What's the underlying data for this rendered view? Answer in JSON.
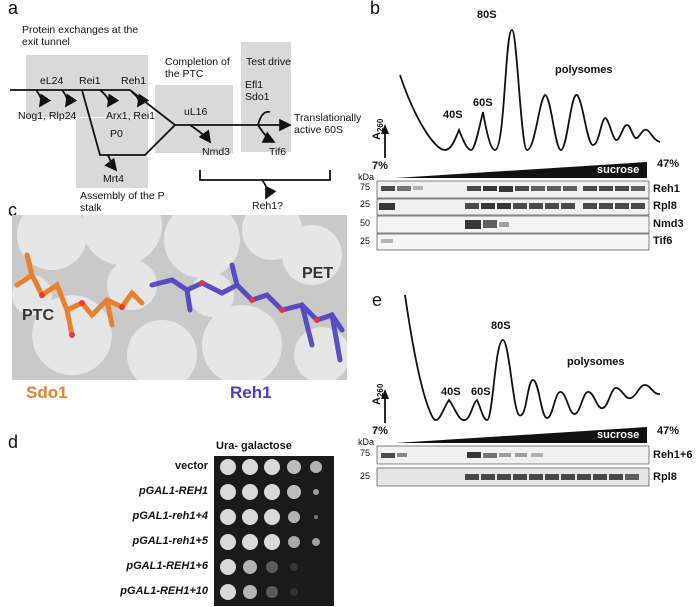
{
  "panels": {
    "a": "a",
    "b": "b",
    "c": "c",
    "d": "d",
    "e": "e"
  },
  "panel_a": {
    "stage_exit_tunnel": "Protein exchanges at the exit tunnel",
    "stage_ptc": "Completion of the PTC",
    "stage_test_drive": "Test drive",
    "stage_p_stalk": "Assembly of the P stalk",
    "factor_el24": "eL24",
    "factor_rei1": "Rei1",
    "factor_reh1": "Reh1",
    "factor_ul16": "uL16",
    "factor_efl1": "Efl1",
    "factor_sdo1": "Sdo1",
    "factor_p0": "P0",
    "released_nog1": "Nog1, Rlp24",
    "released_arx1": "Arx1, Rei1",
    "released_nmd3": "Nmd3",
    "released_tif6": "Tif6",
    "released_mrt4": "Mrt4",
    "product": "Translationally active 60S",
    "reh1_question": "Reh1?"
  },
  "panel_b": {
    "peak_40s": "40S",
    "peak_60s": "60S",
    "peak_80s": "80S",
    "polysomes": "polysomes",
    "a260": "A",
    "a260_sub": "260",
    "pct_low": "7%",
    "pct_high": "47%",
    "sucrose": "sucrose",
    "kda": "kDa",
    "mw": [
      "75",
      "25",
      "50",
      "25"
    ],
    "bands": [
      "Reh1",
      "Rpl8",
      "Nmd3",
      "Tif6"
    ]
  },
  "panel_c": {
    "ptc": "PTC",
    "pet": "PET",
    "sdo1": "Sdo1",
    "reh1": "Reh1",
    "sdo1_color": "#e8802e",
    "reh1_color": "#4b3fc2"
  },
  "panel_d": {
    "title": "Ura- galactose",
    "strains": [
      "vector",
      "pGAL1-REH1",
      "pGAL1-reh1+4",
      "pGAL1-reh1+5",
      "pGAL1-REH1+6",
      "pGAL1-REH1+10"
    ]
  },
  "panel_e": {
    "peak_40s": "40S",
    "peak_60s": "60S",
    "peak_80s": "80S",
    "polysomes": "polysomes",
    "a260": "A",
    "a260_sub": "260",
    "pct_low": "7%",
    "pct_high": "47%",
    "sucrose": "sucrose",
    "kda": "kDa",
    "mw": [
      "75",
      "25"
    ],
    "bands": [
      "Reh1+6",
      "Rpl8"
    ]
  }
}
